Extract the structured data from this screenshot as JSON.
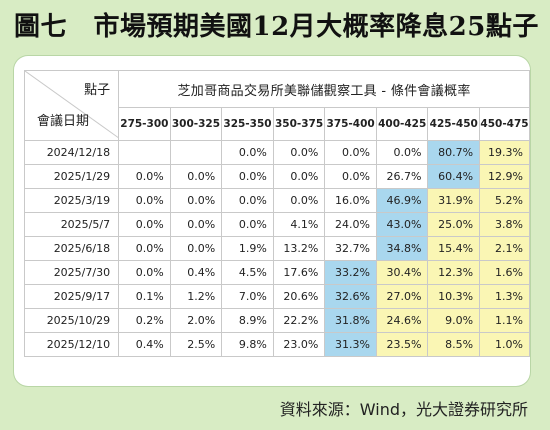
{
  "title": "圖七　市場預期美國12月大概率降息25點子",
  "corner_top": "點子",
  "corner_bottom": "會議日期",
  "table_title": "芝加哥商品交易所美聯儲觀察工具 - 條件會議概率",
  "rate_ranges": [
    "275-300",
    "300-325",
    "325-350",
    "350-375",
    "375-400",
    "400-425",
    "425-450",
    "450-475"
  ],
  "rows": [
    {
      "date": "2024/12/18",
      "values": [
        "",
        "",
        "0.0%",
        "0.0%",
        "0.0%",
        "0.0%",
        "80.7%",
        "19.3%"
      ],
      "fills": [
        "",
        "",
        "",
        "",
        "",
        "",
        "hi",
        "mid"
      ]
    },
    {
      "date": "2025/1/29",
      "values": [
        "0.0%",
        "0.0%",
        "0.0%",
        "0.0%",
        "0.0%",
        "26.7%",
        "60.4%",
        "12.9%"
      ],
      "fills": [
        "",
        "",
        "",
        "",
        "",
        "",
        "hi",
        "mid"
      ]
    },
    {
      "date": "2025/3/19",
      "values": [
        "0.0%",
        "0.0%",
        "0.0%",
        "0.0%",
        "16.0%",
        "46.9%",
        "31.9%",
        "5.2%"
      ],
      "fills": [
        "",
        "",
        "",
        "",
        "",
        "hi",
        "mid",
        "mid"
      ]
    },
    {
      "date": "2025/5/7",
      "values": [
        "0.0%",
        "0.0%",
        "0.0%",
        "4.1%",
        "24.0%",
        "43.0%",
        "25.0%",
        "3.8%"
      ],
      "fills": [
        "",
        "",
        "",
        "",
        "",
        "hi",
        "mid",
        "mid"
      ]
    },
    {
      "date": "2025/6/18",
      "values": [
        "0.0%",
        "0.0%",
        "1.9%",
        "13.2%",
        "32.7%",
        "34.8%",
        "15.4%",
        "2.1%"
      ],
      "fills": [
        "",
        "",
        "",
        "",
        "",
        "hi",
        "mid",
        "mid"
      ]
    },
    {
      "date": "2025/7/30",
      "values": [
        "0.0%",
        "0.4%",
        "4.5%",
        "17.6%",
        "33.2%",
        "30.4%",
        "12.3%",
        "1.6%"
      ],
      "fills": [
        "",
        "",
        "",
        "",
        "hi",
        "mid",
        "mid",
        "mid"
      ]
    },
    {
      "date": "2025/9/17",
      "values": [
        "0.1%",
        "1.2%",
        "7.0%",
        "20.6%",
        "32.6%",
        "27.0%",
        "10.3%",
        "1.3%"
      ],
      "fills": [
        "",
        "",
        "",
        "",
        "hi",
        "mid",
        "mid",
        "mid"
      ]
    },
    {
      "date": "2025/10/29",
      "values": [
        "0.2%",
        "2.0%",
        "8.9%",
        "22.2%",
        "31.8%",
        "24.6%",
        "9.0%",
        "1.1%"
      ],
      "fills": [
        "",
        "",
        "",
        "",
        "hi",
        "mid",
        "mid",
        "mid"
      ]
    },
    {
      "date": "2025/12/10",
      "values": [
        "0.4%",
        "2.5%",
        "9.8%",
        "23.0%",
        "31.3%",
        "23.5%",
        "8.5%",
        "1.0%"
      ],
      "fills": [
        "",
        "",
        "",
        "",
        "hi",
        "mid",
        "mid",
        "mid"
      ]
    }
  ],
  "source": "資料來源：Wind，光大證券研究所",
  "colors": {
    "background": "#d8ecc4",
    "highlight_max": "#a9d7ee",
    "highlight_next": "#faf6b4"
  }
}
